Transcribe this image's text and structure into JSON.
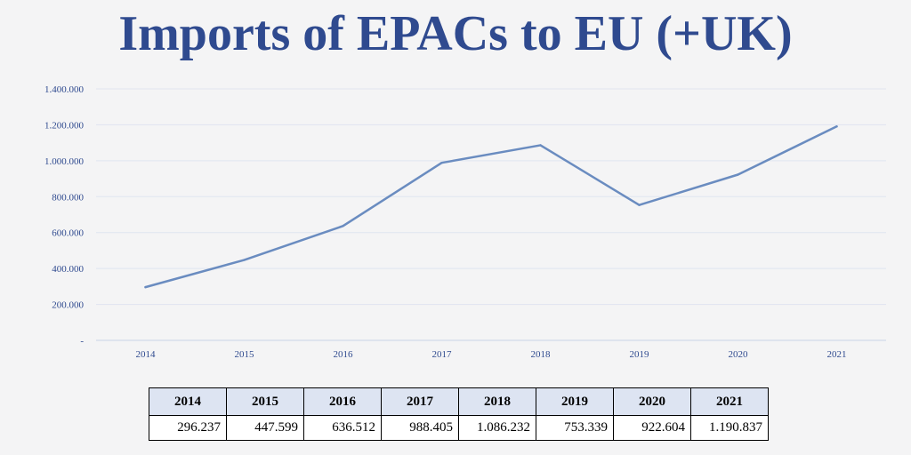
{
  "title": "Imports of EPACs to EU (+UK)",
  "chart_data": {
    "type": "line",
    "categories": [
      "2014",
      "2015",
      "2016",
      "2017",
      "2018",
      "2019",
      "2020",
      "2021"
    ],
    "series": [
      {
        "values": [
          296237,
          447599,
          636512,
          988405,
          1086232,
          753339,
          922604,
          1190837
        ]
      }
    ],
    "ylim": [
      0,
      1400000
    ],
    "y_ticks": [
      "-",
      "200.000",
      "400.000",
      "600.000",
      "800.000",
      "1.000.000",
      "1.200.000",
      "1.400.000"
    ],
    "grid": true,
    "line_color": "#6a8cc0"
  },
  "table": {
    "headers": [
      "2014",
      "2015",
      "2016",
      "2017",
      "2018",
      "2019",
      "2020",
      "2021"
    ],
    "values": [
      "296.237",
      "447.599",
      "636.512",
      "988.405",
      "1.086.232",
      "753.339",
      "922.604",
      "1.190.837"
    ]
  }
}
